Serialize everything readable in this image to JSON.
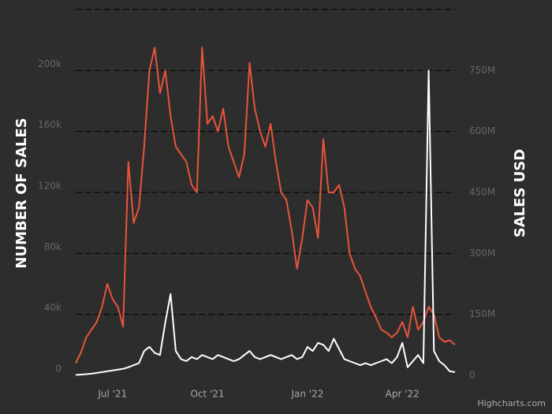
{
  "chart_data": {
    "type": "line",
    "y_label": "NUMBER OF SALES",
    "y2_label": "SALES USD",
    "credit": "Highcharts.com",
    "categories": [
      null,
      null,
      null,
      null,
      null,
      null,
      null,
      "Jul '21",
      null,
      null,
      null,
      null,
      null,
      null,
      null,
      null,
      null,
      null,
      null,
      null,
      null,
      null,
      null,
      null,
      null,
      "Oct '21",
      null,
      null,
      null,
      null,
      null,
      null,
      null,
      null,
      null,
      null,
      null,
      null,
      null,
      null,
      null,
      null,
      null,
      null,
      "Jan '22",
      null,
      null,
      null,
      null,
      null,
      null,
      null,
      null,
      null,
      null,
      null,
      null,
      null,
      null,
      null,
      null,
      null,
      "Apr '22",
      null,
      null,
      null,
      null,
      null,
      null,
      null,
      null,
      null,
      null
    ],
    "series": [
      {
        "name": "Number of sales",
        "color": "#e8543a",
        "values": [
          8000,
          15000,
          25000,
          30000,
          35000,
          45000,
          60000,
          50000,
          45000,
          32000,
          140000,
          100000,
          110000,
          150000,
          200000,
          215000,
          185000,
          200000,
          170000,
          150000,
          145000,
          140000,
          125000,
          120000,
          215000,
          165000,
          170000,
          160000,
          175000,
          150000,
          140000,
          130000,
          145000,
          205000,
          175000,
          160000,
          150000,
          165000,
          140000,
          120000,
          115000,
          95000,
          70000,
          90000,
          115000,
          110000,
          90000,
          155000,
          120000,
          120000,
          125000,
          110000,
          80000,
          70000,
          65000,
          55000,
          45000,
          38000,
          30000,
          28000,
          25000,
          28000,
          35000,
          25000,
          45000,
          30000,
          35000,
          45000,
          40000,
          25000,
          22000,
          23000,
          20000
        ]
      },
      {
        "name": "Sales USD",
        "color": "#ffffff",
        "axis": "y2",
        "values": [
          1000000,
          2000000,
          3000000,
          4000000,
          6000000,
          8000000,
          10000000,
          12000000,
          14000000,
          16000000,
          20000000,
          25000000,
          30000000,
          60000000,
          70000000,
          55000000,
          50000000,
          130000000,
          200000000,
          60000000,
          40000000,
          35000000,
          45000000,
          40000000,
          50000000,
          45000000,
          40000000,
          50000000,
          45000000,
          40000000,
          35000000,
          40000000,
          50000000,
          60000000,
          45000000,
          40000000,
          45000000,
          50000000,
          45000000,
          40000000,
          45000000,
          50000000,
          40000000,
          45000000,
          70000000,
          60000000,
          80000000,
          75000000,
          60000000,
          90000000,
          65000000,
          40000000,
          35000000,
          30000000,
          25000000,
          30000000,
          25000000,
          30000000,
          35000000,
          40000000,
          30000000,
          45000000,
          80000000,
          20000000,
          35000000,
          50000000,
          30000000,
          750000000,
          60000000,
          35000000,
          25000000,
          10000000,
          8000000
        ]
      }
    ],
    "ylim": [
      0,
      240000
    ],
    "yticks": [
      0,
      {
        "value": 40000,
        "label": "40k"
      },
      {
        "value": 80000,
        "label": "80k"
      },
      {
        "value": 120000,
        "label": "120k"
      },
      {
        "value": 160000,
        "label": "160k"
      },
      {
        "value": 200000,
        "label": "200k"
      }
    ],
    "y2lim": [
      0,
      900000000
    ],
    "y2ticks": [
      0,
      {
        "value": 150000000,
        "label": "150M"
      },
      {
        "value": 300000000,
        "label": "300M"
      },
      {
        "value": 450000000,
        "label": "450M"
      },
      {
        "value": 600000000,
        "label": "600M"
      },
      {
        "value": 750000000,
        "label": "750M"
      }
    ],
    "grid": true
  }
}
